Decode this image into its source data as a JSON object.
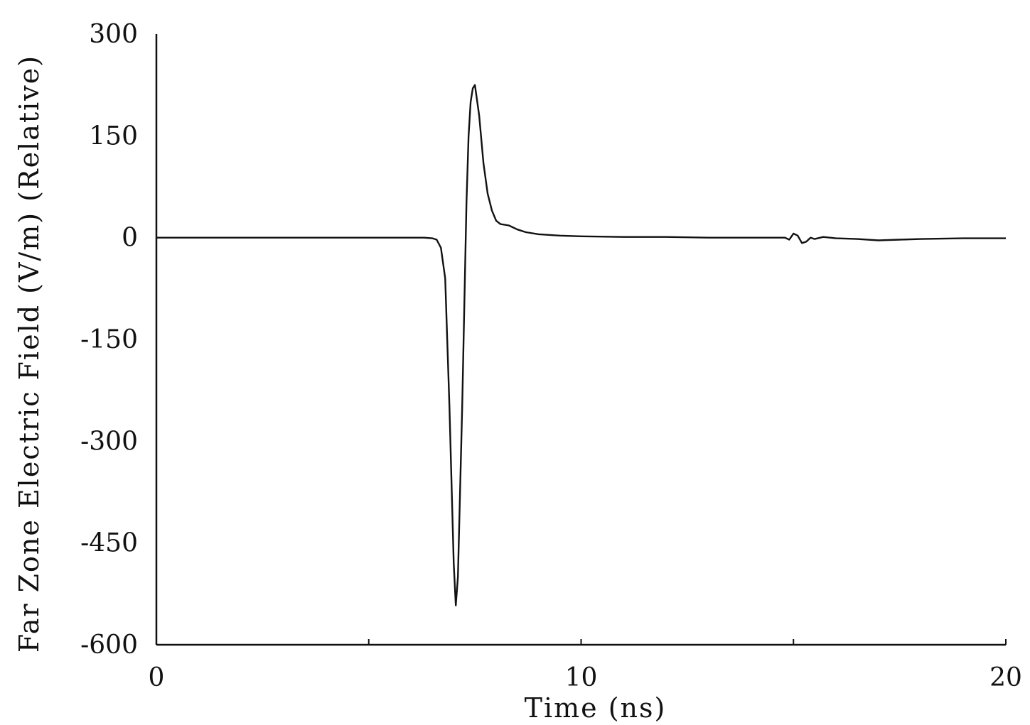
{
  "chart_data": {
    "type": "line",
    "title": "",
    "xlabel": "Time (ns)",
    "ylabel": "Far Zone Electric Field (V/m) (Relative)",
    "xlim": [
      0,
      20
    ],
    "ylim": [
      -600,
      300
    ],
    "x_ticks": [
      0,
      5,
      10,
      15,
      20
    ],
    "x_tick_labels": [
      {
        "value": 0,
        "label": "0"
      },
      {
        "value": 10,
        "label": "10"
      },
      {
        "value": 20,
        "label": "20"
      }
    ],
    "y_tick_labels": [
      {
        "value": 300,
        "label": "300"
      },
      {
        "value": 150,
        "label": "150"
      },
      {
        "value": 0,
        "label": "0"
      },
      {
        "value": -150,
        "label": "-150"
      },
      {
        "value": -300,
        "label": "-300"
      },
      {
        "value": -450,
        "label": "-450"
      },
      {
        "value": -600,
        "label": "-600"
      }
    ],
    "grid": false,
    "line_color": "#111111",
    "series": [
      {
        "x": [
          0,
          1,
          2,
          3,
          4,
          5,
          6,
          6.3,
          6.5,
          6.6,
          6.7,
          6.8,
          6.9,
          7.0,
          7.05,
          7.1,
          7.2,
          7.3,
          7.35,
          7.4,
          7.45,
          7.5,
          7.6,
          7.7,
          7.8,
          7.9,
          8.0,
          8.1,
          8.3,
          8.5,
          8.7,
          9.0,
          9.5,
          10,
          11,
          12,
          13,
          14,
          14.8,
          14.9,
          15.0,
          15.1,
          15.2,
          15.3,
          15.4,
          15.5,
          15.7,
          16,
          16.5,
          17,
          17.5,
          18,
          19,
          20
        ],
        "y": [
          0,
          0,
          0,
          0,
          0,
          0,
          0,
          0,
          -1,
          -3,
          -15,
          -60,
          -250,
          -480,
          -542,
          -500,
          -250,
          50,
          150,
          200,
          220,
          225,
          180,
          110,
          65,
          40,
          25,
          20,
          18,
          12,
          8,
          5,
          3,
          2,
          1,
          1,
          0,
          0,
          0,
          -3,
          6,
          3,
          -8,
          -6,
          0,
          -2,
          1,
          -1,
          -2,
          -4,
          -3,
          -2,
          -1,
          -1
        ]
      }
    ]
  }
}
